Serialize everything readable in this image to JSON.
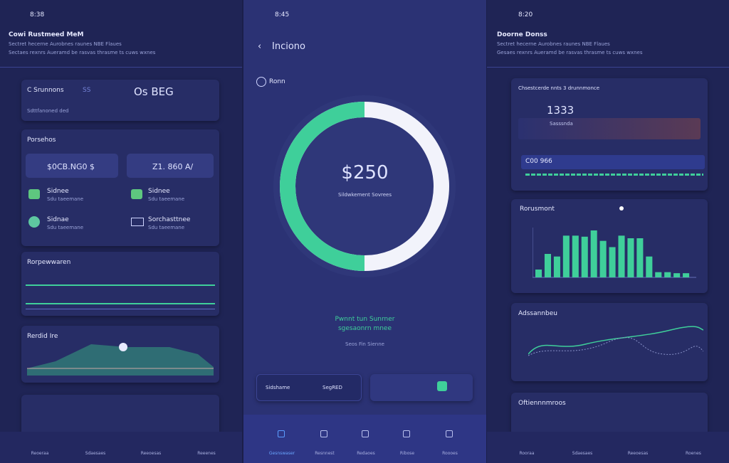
{
  "left": {
    "status_time": "8:38",
    "title": "Cowi Rustmeed MeM",
    "subtitle": [
      "Sectret hecerne Aurobnes raunes NBE Flaues",
      "Sectaes rexnrs Aueramd be rasvas thrasme ts cuws wxnes"
    ],
    "summary": {
      "label": "C Srunnons",
      "tag": "SS",
      "value": "Os BEG",
      "note": "Sdttfanoned ded"
    },
    "accounts": {
      "title": "Porsehos",
      "balance_a": "$0CB.NG0 $",
      "balance_b": "Z1. 860 A/",
      "items": [
        {
          "name": "Sidnee",
          "sub": "Sdu taeemane"
        },
        {
          "name": "Sidnee",
          "sub": "Sdu taeemane"
        },
        {
          "name": "Sidnae",
          "sub": "Sdu taeemane"
        },
        {
          "name": "Sorchasttnee",
          "sub": "Sdu taeemane"
        }
      ]
    },
    "progress": {
      "title": "Rorpewwaren"
    },
    "trend": {
      "title": "Rerdid Ire"
    },
    "nav": [
      "Reoeraa",
      "Sdaesaes",
      "Reeoesas",
      "Reeenes"
    ]
  },
  "middle": {
    "status_time": "8:45",
    "title": "Inciono",
    "section": "Ronn",
    "donut": {
      "value_label": "$250",
      "caption": "Sildwkement Sovrees"
    },
    "message": [
      "Pwnnt tun Sunrner",
      "sgesaonrn mnee"
    ],
    "hint": "Seos Fin Sienne",
    "button": {
      "label": "Sidshame",
      "value": "SegRED"
    },
    "nav": [
      "Gesnswaser",
      "Resnnest",
      "Redaoes",
      "Ribose",
      "Roooes"
    ]
  },
  "right": {
    "status_time": "8:20",
    "title": "Doorne Donss",
    "subtitle": [
      "Sectret hecerne Aurobnes raunes NBE Flaues",
      "Gesaes rexnrs Aueramd be rasvas thrasme ts cuws wxnes"
    ],
    "summary": {
      "label": "Chsestcerde nnts 3 drunnmonce",
      "value": "1333",
      "sub": "Sasssnda",
      "bar_label": "C00 966"
    },
    "bar_chart": {
      "title": "Rorusmont",
      "values": [
        15,
        45,
        40,
        80,
        80,
        78,
        90,
        70,
        58,
        80,
        75,
        75,
        40,
        10,
        10,
        8,
        8
      ]
    },
    "line_card": {
      "title": "Adssannbeu"
    },
    "list_card": {
      "title": "Oftiennnmroos"
    },
    "nav": [
      "Rooraa",
      "Sdaesaes",
      "Reeoesas",
      "Roenes"
    ]
  }
}
